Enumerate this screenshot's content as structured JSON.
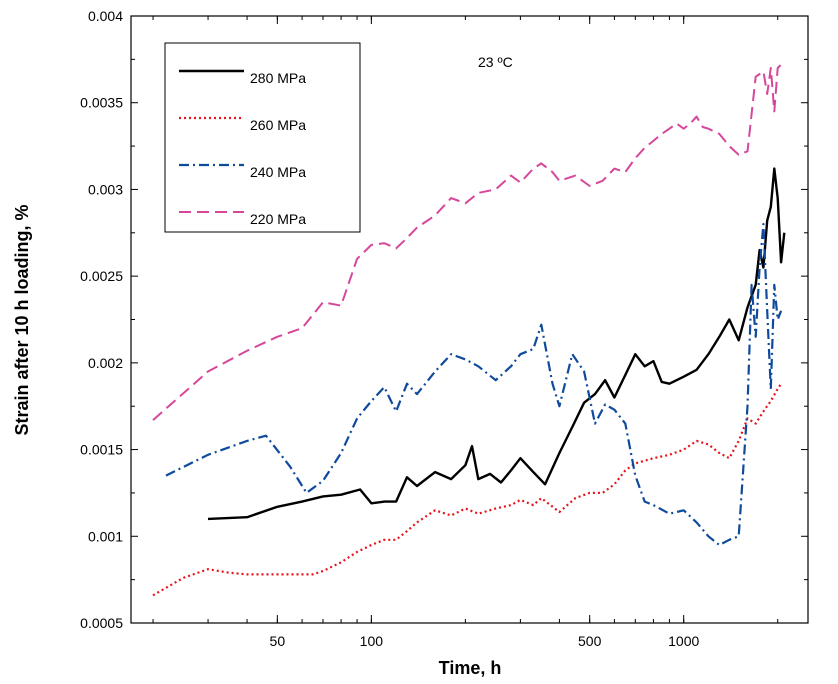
{
  "chart_data": {
    "type": "line",
    "title": "",
    "xlabel": "Time, h",
    "ylabel": "Strain after 10 h loading, %",
    "xscale": "log",
    "xlim": [
      17,
      2500
    ],
    "ylim": [
      0.0005,
      0.004
    ],
    "xticks": [
      50,
      100,
      500,
      1000
    ],
    "xtick_labels": [
      "50",
      "100",
      "500",
      "1000"
    ],
    "yticks": [
      0.0005,
      0.001,
      0.0015,
      0.002,
      0.0025,
      0.003,
      0.0035,
      0.004
    ],
    "ytick_labels": [
      "0.0005",
      "0.001",
      "0.0015",
      "0.002",
      "0.0025",
      "0.003",
      "0.0035",
      "0.004"
    ],
    "grid": false,
    "legend_position": "top-left",
    "annotations": [
      {
        "text": "23 ºC",
        "x": 300,
        "y": 0.00373
      }
    ],
    "series": [
      {
        "name": "280 MPa",
        "color": "#000000",
        "dash": "solid",
        "x": [
          30,
          40,
          50,
          60,
          70,
          80,
          92,
          100,
          110,
          120,
          130,
          140,
          160,
          180,
          200,
          210,
          220,
          240,
          260,
          280,
          300,
          330,
          360,
          400,
          440,
          480,
          520,
          560,
          600,
          650,
          700,
          750,
          800,
          850,
          900,
          1000,
          1100,
          1200,
          1300,
          1400,
          1500,
          1600,
          1700,
          1750,
          1800,
          1850,
          1900,
          1950,
          2000,
          2050,
          2100
        ],
        "values": [
          0.0011,
          0.00111,
          0.00117,
          0.0012,
          0.00123,
          0.00124,
          0.00127,
          0.00119,
          0.0012,
          0.0012,
          0.00134,
          0.00129,
          0.00137,
          0.00133,
          0.00141,
          0.00152,
          0.00133,
          0.00136,
          0.00131,
          0.00138,
          0.00145,
          0.00137,
          0.0013,
          0.00148,
          0.00163,
          0.00177,
          0.00182,
          0.0019,
          0.0018,
          0.00193,
          0.00205,
          0.00198,
          0.00201,
          0.00189,
          0.00188,
          0.00192,
          0.00196,
          0.00205,
          0.00215,
          0.00225,
          0.00213,
          0.00232,
          0.00245,
          0.00265,
          0.00255,
          0.00282,
          0.0029,
          0.00312,
          0.00295,
          0.00258,
          0.00275
        ]
      },
      {
        "name": "260 MPa",
        "color": "#e8131a",
        "dash": "dotted",
        "x": [
          20,
          25,
          30,
          35,
          40,
          45,
          50,
          55,
          60,
          65,
          70,
          80,
          90,
          100,
          110,
          120,
          130,
          140,
          160,
          180,
          200,
          220,
          250,
          280,
          300,
          330,
          350,
          400,
          450,
          500,
          550,
          600,
          650,
          700,
          800,
          900,
          1000,
          1100,
          1200,
          1300,
          1400,
          1500,
          1600,
          1700,
          1800,
          1900,
          2000,
          2050
        ],
        "values": [
          0.00066,
          0.00076,
          0.00081,
          0.00079,
          0.00078,
          0.00078,
          0.00078,
          0.00078,
          0.00078,
          0.00078,
          0.0008,
          0.00085,
          0.00091,
          0.00095,
          0.00098,
          0.00098,
          0.00103,
          0.00108,
          0.00115,
          0.00112,
          0.00116,
          0.00113,
          0.00116,
          0.00118,
          0.00121,
          0.00118,
          0.00122,
          0.00114,
          0.00122,
          0.00125,
          0.00125,
          0.0013,
          0.00138,
          0.00142,
          0.00145,
          0.00147,
          0.0015,
          0.00155,
          0.00153,
          0.00148,
          0.00145,
          0.00155,
          0.00168,
          0.00165,
          0.00172,
          0.00178,
          0.00185,
          0.00188
        ]
      },
      {
        "name": "240 MPa",
        "color": "#0f4a9c",
        "dash": "dashdot",
        "x": [
          22,
          30,
          40,
          46,
          55,
          62,
          70,
          80,
          90,
          100,
          110,
          120,
          130,
          140,
          160,
          180,
          200,
          220,
          250,
          280,
          300,
          330,
          350,
          380,
          400,
          440,
          480,
          520,
          560,
          600,
          650,
          700,
          750,
          800,
          900,
          1000,
          1100,
          1200,
          1300,
          1400,
          1500,
          1600,
          1650,
          1700,
          1750,
          1800,
          1850,
          1900,
          1950,
          2000,
          2050
        ],
        "values": [
          0.00135,
          0.00147,
          0.00155,
          0.00158,
          0.0014,
          0.00125,
          0.00132,
          0.00148,
          0.00168,
          0.00178,
          0.00186,
          0.00172,
          0.00188,
          0.00182,
          0.00195,
          0.00205,
          0.00202,
          0.00198,
          0.0019,
          0.00198,
          0.00205,
          0.00208,
          0.00222,
          0.00188,
          0.00175,
          0.00205,
          0.00195,
          0.00165,
          0.00176,
          0.00173,
          0.00165,
          0.00135,
          0.0012,
          0.00118,
          0.00113,
          0.00115,
          0.00108,
          0.001,
          0.00095,
          0.00098,
          0.001,
          0.00175,
          0.00245,
          0.00215,
          0.00255,
          0.0028,
          0.0023,
          0.00185,
          0.00245,
          0.00225,
          0.0023
        ]
      },
      {
        "name": "220 MPa",
        "color": "#d6479c",
        "dash": "dashed",
        "x": [
          20,
          30,
          40,
          50,
          60,
          70,
          80,
          90,
          100,
          110,
          120,
          130,
          140,
          160,
          180,
          200,
          220,
          250,
          280,
          300,
          330,
          350,
          380,
          400,
          450,
          500,
          550,
          600,
          650,
          700,
          750,
          800,
          850,
          900,
          950,
          1000,
          1050,
          1100,
          1150,
          1200,
          1300,
          1400,
          1500,
          1600,
          1700,
          1800,
          1850,
          1900,
          1950,
          2000,
          2050
        ],
        "values": [
          0.00167,
          0.00195,
          0.00207,
          0.00215,
          0.0022,
          0.00235,
          0.00233,
          0.0026,
          0.00268,
          0.00269,
          0.00266,
          0.00272,
          0.00278,
          0.00285,
          0.00295,
          0.00292,
          0.00298,
          0.003,
          0.00308,
          0.00304,
          0.00312,
          0.00315,
          0.0031,
          0.00305,
          0.00308,
          0.00302,
          0.00305,
          0.00312,
          0.0031,
          0.00318,
          0.00324,
          0.00328,
          0.00332,
          0.00335,
          0.00338,
          0.00335,
          0.00338,
          0.00342,
          0.00336,
          0.00335,
          0.00332,
          0.00325,
          0.0032,
          0.00322,
          0.00365,
          0.00368,
          0.00355,
          0.0037,
          0.00345,
          0.0037,
          0.00372
        ]
      }
    ]
  }
}
